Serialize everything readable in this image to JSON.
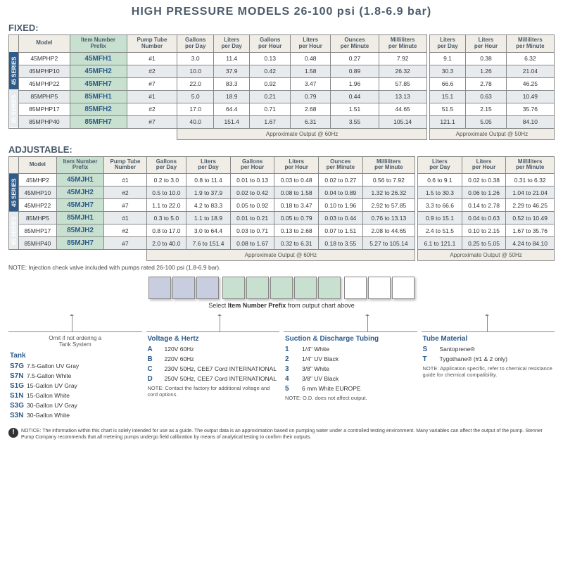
{
  "title": "HIGH PRESSURE MODELS  26-100 psi (1.8-6.9 bar)",
  "fixed_label": "FIXED:",
  "adjustable_label": "ADJUSTABLE:",
  "headers": {
    "model": "Model",
    "prefix": "Item Number\nPrefix",
    "tube": "Pump Tube\nNumber",
    "gpd": "Gallons\nper Day",
    "lpd": "Liters\nper Day",
    "gph": "Gallons\nper Hour",
    "lph": "Liters\nper Hour",
    "opm": "Ounces\nper Minute",
    "mlpm": "Milliliters\nper Minute",
    "lpd2": "Liters\nper Day",
    "lph2": "Liters\nper Hour",
    "mlpm2": "Milliliters\nper Minute"
  },
  "footer60": "Approximate Output @ 60Hz",
  "footer50": "Approximate Output @ 50Hz",
  "series45": "45 SERIES",
  "series85": "85 SERIES",
  "fixed_rows": [
    {
      "s": "45",
      "m": "45MPHP2",
      "p": "45MFH1",
      "t": "#1",
      "v": [
        "3.0",
        "11.4",
        "0.13",
        "0.48",
        "0.27",
        "7.92",
        "9.1",
        "0.38",
        "6.32"
      ]
    },
    {
      "s": "45",
      "m": "45MPHP10",
      "p": "45MFH2",
      "t": "#2",
      "v": [
        "10.0",
        "37.9",
        "0.42",
        "1.58",
        "0.89",
        "26.32",
        "30.3",
        "1.26",
        "21.04"
      ],
      "alt": true
    },
    {
      "s": "45",
      "m": "45MPHP22",
      "p": "45MFH7",
      "t": "#7",
      "v": [
        "22.0",
        "83.3",
        "0.92",
        "3.47",
        "1.96",
        "57.85",
        "66.6",
        "2.78",
        "46.25"
      ]
    },
    {
      "s": "85",
      "m": "85MPHP5",
      "p": "85MFH1",
      "t": "#1",
      "v": [
        "5.0",
        "18.9",
        "0.21",
        "0.79",
        "0.44",
        "13.13",
        "15.1",
        "0.63",
        "10.49"
      ],
      "alt": true
    },
    {
      "s": "85",
      "m": "85MPHP17",
      "p": "85MFH2",
      "t": "#2",
      "v": [
        "17.0",
        "64.4",
        "0.71",
        "2.68",
        "1.51",
        "44.65",
        "51.5",
        "2.15",
        "35.76"
      ]
    },
    {
      "s": "85",
      "m": "85MPHP40",
      "p": "85MFH7",
      "t": "#7",
      "v": [
        "40.0",
        "151.4",
        "1.67",
        "6.31",
        "3.55",
        "105.14",
        "121.1",
        "5.05",
        "84.10"
      ],
      "alt": true
    }
  ],
  "adj_rows": [
    {
      "s": "45",
      "m": "45MHP2",
      "p": "45MJH1",
      "t": "#1",
      "v": [
        "0.2 to 3.0",
        "0.8 to 11.4",
        "0.01 to 0.13",
        "0.03 to 0.48",
        "0.02 to 0.27",
        "0.56 to 7.92",
        "0.6 to 9.1",
        "0.02 to 0.38",
        "0.31 to 6.32"
      ]
    },
    {
      "s": "45",
      "m": "45MHP10",
      "p": "45MJH2",
      "t": "#2",
      "v": [
        "0.5 to 10.0",
        "1.9 to 37.9",
        "0.02 to 0.42",
        "0.08 to 1.58",
        "0.04 to 0.89",
        "1.32 to 26.32",
        "1.5 to 30.3",
        "0.06 to 1.26",
        "1.04 to 21.04"
      ],
      "alt": true
    },
    {
      "s": "45",
      "m": "45MHP22",
      "p": "45MJH7",
      "t": "#7",
      "v": [
        "1.1 to 22.0",
        "4.2 to 83.3",
        "0.05 to 0.92",
        "0.18 to 3.47",
        "0.10 to 1.96",
        "2.92 to 57.85",
        "3.3 to 66.6",
        "0.14 to 2.78",
        "2.29 to 46.25"
      ]
    },
    {
      "s": "85",
      "m": "85MHP5",
      "p": "85MJH1",
      "t": "#1",
      "v": [
        "0.3 to 5.0",
        "1.1 to 18.9",
        "0.01 to 0.21",
        "0.05 to 0.79",
        "0.03 to 0.44",
        "0.76 to 13.13",
        "0.9 to 15.1",
        "0.04 to 0.63",
        "0.52 to 10.49"
      ],
      "alt": true
    },
    {
      "s": "85",
      "m": "85MHP17",
      "p": "85MJH2",
      "t": "#2",
      "v": [
        "0.8 to 17.0",
        "3.0 to 64.4",
        "0.03 to 0.71",
        "0.13 to 2.68",
        "0.07 to 1.51",
        "2.08 to 44.65",
        "2.4 to 51.5",
        "0.10 to 2.15",
        "1.67 to 35.76"
      ]
    },
    {
      "s": "85",
      "m": "85MHP40",
      "p": "85MJH7",
      "t": "#7",
      "v": [
        "2.0 to 40.0",
        "7.6 to 151.4",
        "0.08 to 1.67",
        "0.32 to 6.31",
        "0.18 to 3.55",
        "5.27 to 105.14",
        "6.1 to 121.1",
        "0.25 to 5.05",
        "4.24 to 84.10"
      ],
      "alt": true
    }
  ],
  "note_valve": "NOTE: Injection check valve included with pumps rated 26-100 psi (1.8-6.9 bar).",
  "select_label": "Select Item Number Prefix from output chart above",
  "tank": {
    "title": "Tank",
    "omit": "Omit if not ordering a\nTank System",
    "opts": [
      [
        "S7G",
        "7.5-Gallon UV Gray"
      ],
      [
        "S7N",
        "7.5-Gallon White"
      ],
      [
        "S1G",
        "15-Gallon UV Gray"
      ],
      [
        "S1N",
        "15-Gallon White"
      ],
      [
        "S3G",
        "30-Gallon UV Gray"
      ],
      [
        "S3N",
        "30-Gallon White"
      ]
    ]
  },
  "volt": {
    "title": "Voltage & Hertz",
    "opts": [
      [
        "A",
        "120V 60Hz"
      ],
      [
        "B",
        "220V 60Hz"
      ],
      [
        "C",
        "230V 50Hz, CEE7 Cord INTERNATIONAL"
      ],
      [
        "D",
        "250V 50Hz, CEE7 Cord INTERNATIONAL"
      ]
    ],
    "note": "NOTE: Contact the factory for additional voltage and cord options."
  },
  "tubing": {
    "title": "Suction & Discharge Tubing",
    "opts": [
      [
        "1",
        "1/4\" White"
      ],
      [
        "2",
        "1/4\" UV Black"
      ],
      [
        "3",
        "3/8\" White"
      ],
      [
        "4",
        "3/8\" UV Black"
      ],
      [
        "5",
        "6 mm White EUROPE"
      ]
    ],
    "note": "NOTE: O.D. does not affect output."
  },
  "material": {
    "title": "Tube Material",
    "opts": [
      [
        "S",
        "Santoprene®"
      ],
      [
        "T",
        "Tygothane® (#1 & 2 only)"
      ]
    ],
    "note": "NOTE: Application specific, refer to chemical resistance guide for chemical compatibility."
  },
  "notice": "NOTICE: The information within this chart is solely intended for use as a guide. The output data is an approximation based on pumping water under a controlled testing environment. Many variables can affect the output of the pump. Stenner Pump Company recommends that all metering pumps undergo field calibration by means of analytical testing to confirm their outputs."
}
